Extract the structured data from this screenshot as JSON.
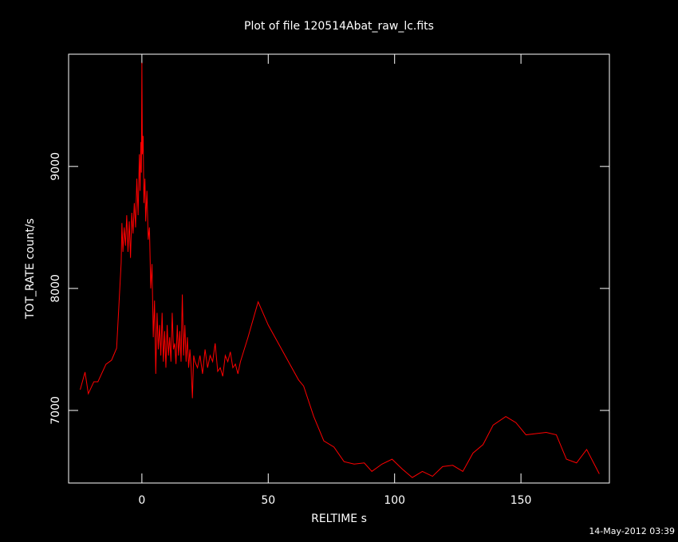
{
  "chart_data": {
    "type": "line",
    "title": "Plot of file 120514Abat_raw_lc.fits",
    "x_label": "RELTIME  s",
    "y_label": "TOT_RATE  count/s",
    "timestamp": "14-May-2012 03:39",
    "color": "#ff0000",
    "xlim": [
      -29,
      185
    ],
    "xticks": [
      0,
      50,
      100,
      150
    ],
    "ylim": [
      6405,
      9920
    ],
    "yticks": [
      7000,
      8000,
      9000
    ],
    "x": [
      -24.4,
      -22.5,
      -21.2,
      -19,
      -17.4,
      -14.2,
      -12,
      -10,
      -8.2,
      -7.9,
      -7.5,
      -7,
      -6.5,
      -6,
      -5.5,
      -5,
      -4.5,
      -4,
      -3.5,
      -3,
      -2.5,
      -2,
      -1.5,
      -1,
      -0.7,
      -0.4,
      -0.2,
      0,
      0.2,
      0.5,
      0.8,
      1.2,
      1.5,
      2,
      2.5,
      3,
      3.5,
      4,
      4.5,
      5,
      5.5,
      6,
      6.5,
      7,
      7.5,
      8,
      8.5,
      9,
      9.5,
      10,
      10.5,
      11,
      11.5,
      12,
      12.5,
      13,
      13.5,
      14,
      14.5,
      15,
      15.5,
      16,
      16.5,
      17,
      17.5,
      18,
      18.5,
      19,
      19.5,
      20,
      20.5,
      21,
      22,
      23,
      24,
      25,
      26,
      27,
      28,
      29,
      30,
      31,
      32,
      33,
      34,
      35,
      36,
      37,
      38,
      39,
      42,
      46,
      50,
      54,
      58,
      62,
      64,
      68,
      72,
      76,
      80,
      84,
      88,
      91,
      95,
      99,
      103,
      107,
      111,
      115,
      119,
      123,
      127,
      131,
      135,
      139,
      144,
      148,
      152,
      156,
      160,
      164,
      168,
      172,
      176,
      181
    ],
    "values": [
      7170,
      7314,
      7137,
      7235,
      7235,
      7379,
      7412,
      7510,
      8209,
      8536,
      8300,
      8500,
      8350,
      8600,
      8300,
      8550,
      8250,
      8620,
      8450,
      8700,
      8500,
      8900,
      8600,
      9100,
      8800,
      9200,
      8950,
      9850,
      9100,
      9250,
      8700,
      8900,
      8550,
      8800,
      8400,
      8500,
      8000,
      8200,
      7600,
      7900,
      7300,
      7800,
      7500,
      7700,
      7450,
      7800,
      7400,
      7650,
      7350,
      7700,
      7450,
      7600,
      7400,
      7800,
      7500,
      7550,
      7380,
      7700,
      7450,
      7650,
      7400,
      7950,
      7450,
      7700,
      7400,
      7600,
      7350,
      7500,
      7350,
      7100,
      7450,
      7400,
      7350,
      7450,
      7300,
      7500,
      7350,
      7450,
      7400,
      7550,
      7320,
      7350,
      7280,
      7450,
      7400,
      7480,
      7350,
      7380,
      7300,
      7400,
      7600,
      7890,
      7700,
      7550,
      7400,
      7250,
      7200,
      6950,
      6750,
      6700,
      6580,
      6560,
      6570,
      6500,
      6560,
      6600,
      6520,
      6450,
      6500,
      6460,
      6540,
      6550,
      6500,
      6650,
      6720,
      6880,
      6950,
      6900,
      6800,
      6810,
      6820,
      6800,
      6600,
      6570,
      6680,
      6480
    ]
  }
}
